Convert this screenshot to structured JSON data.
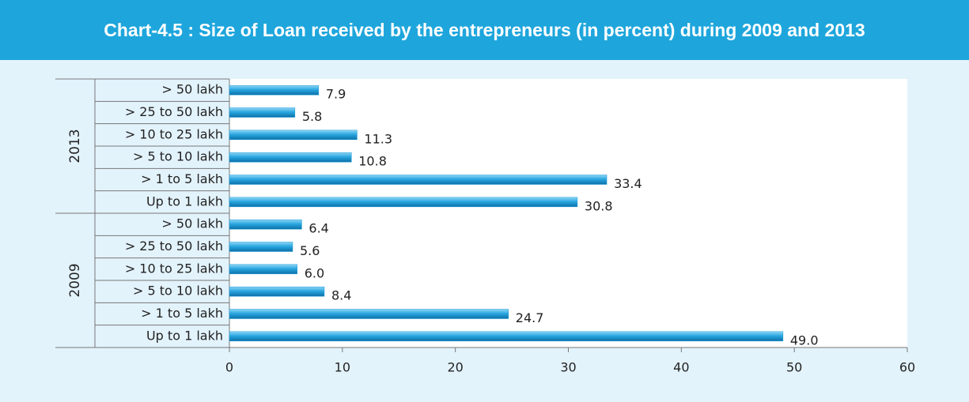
{
  "chart_data": {
    "type": "bar",
    "orientation": "horizontal",
    "title": "Chart-4.5 : Size of Loan received by the entrepreneurs (in percent) during 2009 and 2013",
    "color": "#1a9ad6",
    "groups": [
      {
        "name": "2013",
        "categories": [
          "> 50 lakh",
          "> 25 to 50 lakh",
          "> 10 to 25 lakh",
          "> 5 to 10 lakh",
          "> 1 to 5 lakh",
          "Up to 1 lakh"
        ],
        "values": [
          7.9,
          5.8,
          11.3,
          10.8,
          33.4,
          30.8
        ],
        "value_labels": [
          "7.9",
          "5.8",
          "11.3",
          "10.8",
          "33.4",
          "30.8"
        ]
      },
      {
        "name": "2009",
        "categories": [
          "> 50 lakh",
          "> 25 to 50 lakh",
          "> 10 to 25 lakh",
          "> 5 to 10 lakh",
          "> 1 to 5 lakh",
          "Up to 1 lakh"
        ],
        "values": [
          6.4,
          5.6,
          6.0,
          8.4,
          24.7,
          49.0
        ],
        "value_labels": [
          "6.4",
          "5.6",
          "6.0",
          "8.4",
          "24.7",
          "49.0"
        ]
      }
    ],
    "xlim": [
      0,
      60
    ],
    "xticks": [
      0,
      10,
      20,
      30,
      40,
      50,
      60
    ],
    "grid": false
  }
}
